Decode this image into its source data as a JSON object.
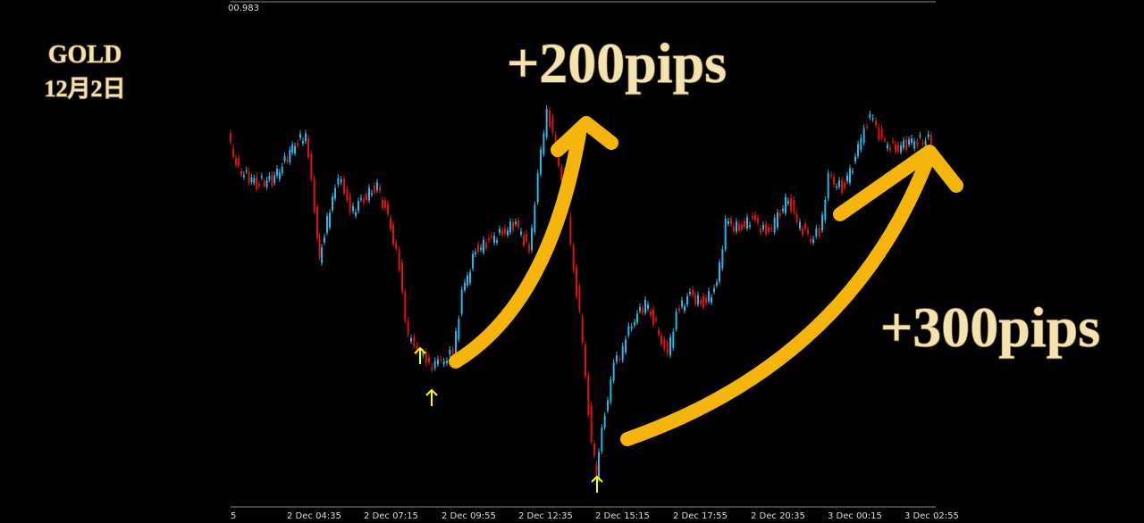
{
  "header": {
    "title": "GOLD",
    "date": "12月2日"
  },
  "price_label": "00.983",
  "annotations": {
    "first": "+200pips",
    "second": "+300pips"
  },
  "x_axis_labels": [
    "5",
    "2 Dec 04:35",
    "2 Dec 07:15",
    "2 Dec 09:55",
    "2 Dec 12:35",
    "2 Dec 15:15",
    "2 Dec 17:55",
    "2 Dec 20:35",
    "3 Dec 00:15",
    "3 Dec 02:55"
  ]
}
